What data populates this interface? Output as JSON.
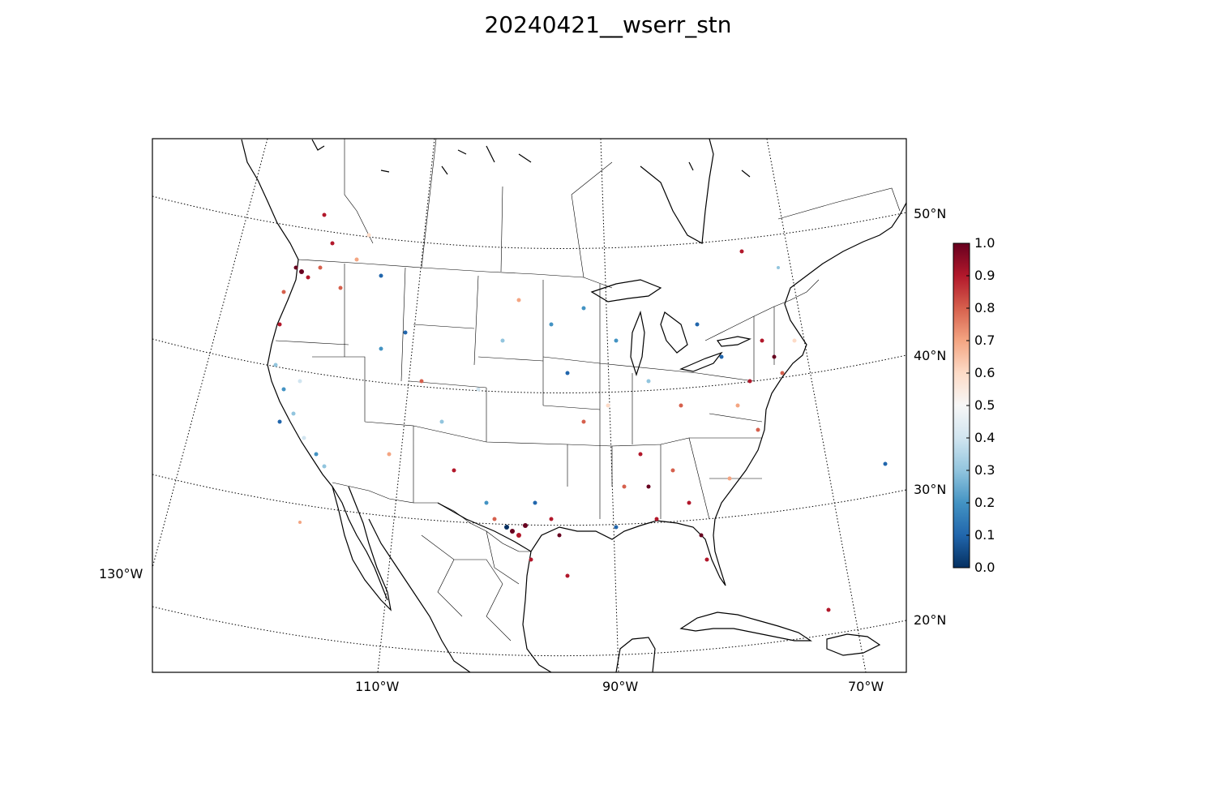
{
  "title": "20240421__wserr_stn",
  "map": {
    "projection": "lambert-conformal",
    "parallels": [
      {
        "label": "50°N"
      },
      {
        "label": "40°N"
      },
      {
        "label": "30°N"
      },
      {
        "label": "20°N"
      }
    ],
    "meridians": [
      {
        "label": "130°W"
      },
      {
        "label": "110°W"
      },
      {
        "label": "90°W"
      },
      {
        "label": "70°W"
      }
    ],
    "graticule_style": "dotted",
    "station_markers": "colored dots by error value",
    "colormap": "RdBu_r"
  },
  "colorbar": {
    "min": 0.0,
    "max": 1.0,
    "ticks": [
      "0.0",
      "0.1",
      "0.2",
      "0.3",
      "0.4",
      "0.5",
      "0.6",
      "0.7",
      "0.8",
      "0.9",
      "1.0"
    ],
    "colors": [
      "#053061",
      "#2166ac",
      "#4393c3",
      "#92c5de",
      "#d1e5f0",
      "#f7f7f7",
      "#fddbc7",
      "#f4a582",
      "#d6604d",
      "#b2182b",
      "#67001f"
    ]
  }
}
